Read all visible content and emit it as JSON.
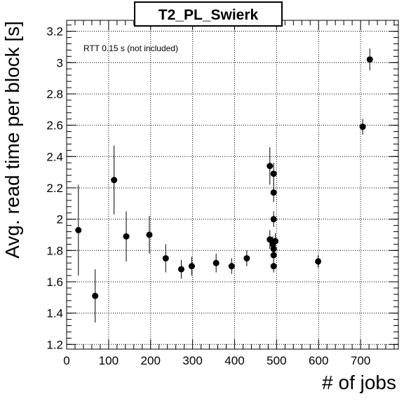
{
  "chart_data": {
    "type": "scatter",
    "title": "T2_PL_Swierk",
    "xlabel": "# of jobs",
    "ylabel": "Avg. read time per block [s]",
    "annotation": "RTT 0.15 s (not included)",
    "xlim": [
      0,
      790
    ],
    "ylim": [
      1.17,
      3.27
    ],
    "x_ticks": [
      "0",
      "100",
      "200",
      "300",
      "400",
      "500",
      "600",
      "700"
    ],
    "y_ticks": [
      "1.2",
      "1.4",
      "1.6",
      "1.8",
      "2",
      "2.2",
      "2.4",
      "2.6",
      "2.8",
      "3",
      "3.2"
    ],
    "grid": true,
    "marker_color": "#000000",
    "points": [
      {
        "x": 28,
        "y": 1.93,
        "err": 0.29
      },
      {
        "x": 68,
        "y": 1.51,
        "err": 0.17
      },
      {
        "x": 113,
        "y": 2.25,
        "err": 0.22
      },
      {
        "x": 142,
        "y": 1.89,
        "err": 0.16
      },
      {
        "x": 197,
        "y": 1.9,
        "err": 0.12
      },
      {
        "x": 236,
        "y": 1.75,
        "err": 0.09
      },
      {
        "x": 273,
        "y": 1.68,
        "err": 0.06
      },
      {
        "x": 298,
        "y": 1.7,
        "err": 0.06
      },
      {
        "x": 356,
        "y": 1.72,
        "err": 0.06
      },
      {
        "x": 393,
        "y": 1.7,
        "err": 0.05
      },
      {
        "x": 429,
        "y": 1.75,
        "err": 0.05
      },
      {
        "x": 484,
        "y": 2.34,
        "err": 0.12
      },
      {
        "x": 484,
        "y": 1.87,
        "err": 0.06
      },
      {
        "x": 491,
        "y": 1.84,
        "err": 0.05
      },
      {
        "x": 493,
        "y": 2.29,
        "err": 0.07
      },
      {
        "x": 493,
        "y": 2.17,
        "err": 0.06
      },
      {
        "x": 493,
        "y": 2.0,
        "err": 0.05
      },
      {
        "x": 493,
        "y": 1.81,
        "err": 0.04
      },
      {
        "x": 493,
        "y": 1.77,
        "err": 0.04
      },
      {
        "x": 493,
        "y": 1.7,
        "err": 0.04
      },
      {
        "x": 497,
        "y": 1.86,
        "err": 0.05
      },
      {
        "x": 599,
        "y": 1.73,
        "err": 0.04
      },
      {
        "x": 705,
        "y": 2.59,
        "err": 0.05
      },
      {
        "x": 722,
        "y": 3.02,
        "err": 0.07
      }
    ]
  }
}
